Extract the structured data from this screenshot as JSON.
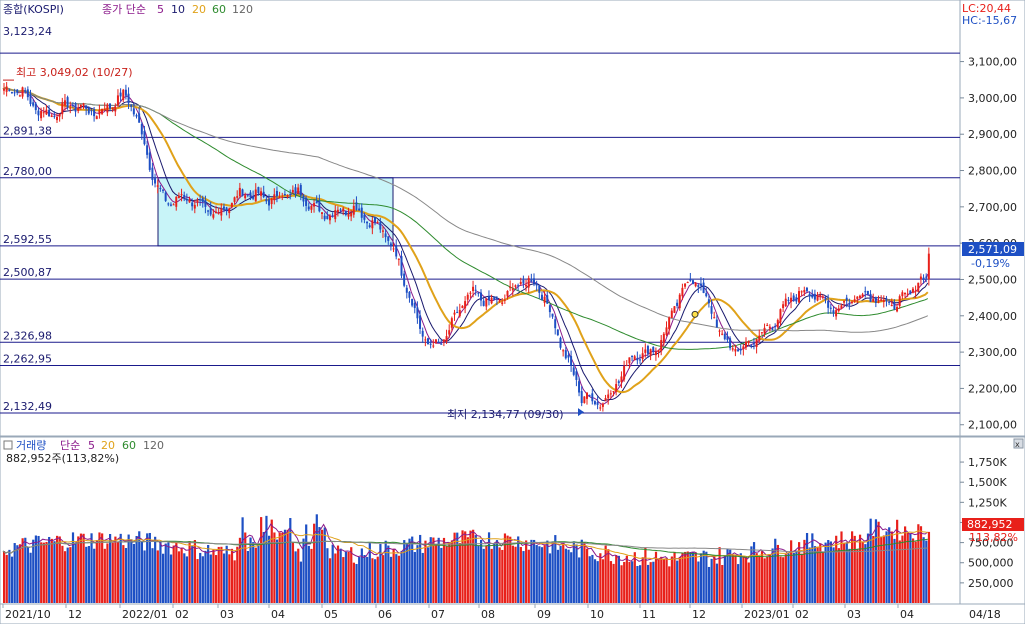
{
  "header": {
    "symbol": "종합(KOSPI)",
    "price_label": "3,123,24",
    "ma_title": "종가 단순",
    "ma_periods": [
      "5",
      "10",
      "20",
      "60",
      "120"
    ],
    "lc": "LC:20,44",
    "hc": "HC:-15,67"
  },
  "price_panel": {
    "high_note": "최고 3,049,02 (10/27)",
    "low_note": "최저 2,134,77 (09/30)",
    "last_price": "2,571,09",
    "last_change": "-0,19%"
  },
  "volume_panel": {
    "title": "거래량",
    "ma_title": "단순",
    "ma_periods": [
      "5",
      "20",
      "60",
      "120"
    ],
    "current": "882,952주(113,82%)",
    "last_value": "882,952",
    "last_ratio": "113,82%"
  },
  "colors": {
    "up": "#e8201a",
    "down": "#1d4fc4",
    "ma5": "#8b1a8b",
    "ma10": "#1a1a6e",
    "ma20": "#e0a21a",
    "ma60": "#2e8b2e",
    "ma120": "#888888",
    "hline": "#1a1a8c",
    "box": "#c8f4f8"
  },
  "chart_data": [
    {
      "type": "candlestick",
      "title": "종합(KOSPI)",
      "y_ticks": [
        "3,100,00",
        "3,000,00",
        "2,900,00",
        "2,800,00",
        "2,700,00",
        "2,600,00",
        "2,500,00",
        "2,400,00",
        "2,300,00",
        "2,200,00",
        "2,100,00"
      ],
      "ylim": [
        2080,
        3220
      ],
      "x_ticks": [
        "2021/10",
        "12",
        "2022/01",
        "02",
        "03",
        "04",
        "05",
        "06",
        "07",
        "08",
        "09",
        "10",
        "11",
        "12",
        "2023/01",
        "02",
        "03",
        "04",
        "04/18"
      ],
      "horizontal_levels": [
        {
          "value": 3123.24,
          "label": "3,123,24"
        },
        {
          "value": 2891.38,
          "label": "2,891,38"
        },
        {
          "value": 2780.0,
          "label": "2,780,00"
        },
        {
          "value": 2592.55,
          "label": "2,592,55"
        },
        {
          "value": 2500.87,
          "label": "2,500,87"
        },
        {
          "value": 2326.98,
          "label": "2,326,98"
        },
        {
          "value": 2262.95,
          "label": "2,262,95"
        },
        {
          "value": 2132.49,
          "label": "2,132,49"
        }
      ],
      "range_box": {
        "from": "2022/01",
        "to": "2022/06",
        "low": 2592.55,
        "high": 2780.0
      },
      "high": {
        "value": 3049.02,
        "date": "10/27"
      },
      "low": {
        "value": 2134.77,
        "date": "09/30"
      },
      "close_path": [
        [
          "2021/10",
          3010
        ],
        [
          "2021/11",
          2960
        ],
        [
          "2021/12",
          2990
        ],
        [
          "2022/01",
          2710
        ],
        [
          "2022/02",
          2700
        ],
        [
          "2022/03",
          2740
        ],
        [
          "2022/04",
          2700
        ],
        [
          "2022/05",
          2660
        ],
        [
          "2022/06",
          2330
        ],
        [
          "2022/07",
          2450
        ],
        [
          "2022/08",
          2480
        ],
        [
          "2022/09",
          2160
        ],
        [
          "2022/10",
          2280
        ],
        [
          "2022/11",
          2480
        ],
        [
          "2022/12",
          2300
        ],
        [
          "2023/01",
          2450
        ],
        [
          "2023/02",
          2440
        ],
        [
          "2023/03",
          2450
        ],
        [
          "2023/04",
          2571.09
        ]
      ],
      "last": 2571.09,
      "last_change_pct": -0.19
    },
    {
      "type": "bar",
      "title": "거래량",
      "y_ticks": [
        "1,750K",
        "1,500K",
        "1,250K",
        "1,000K",
        "750,000",
        "500,000",
        "250,000"
      ],
      "ylim": [
        0,
        1875000
      ],
      "last": 882952,
      "last_ratio_pct": 113.82
    }
  ]
}
